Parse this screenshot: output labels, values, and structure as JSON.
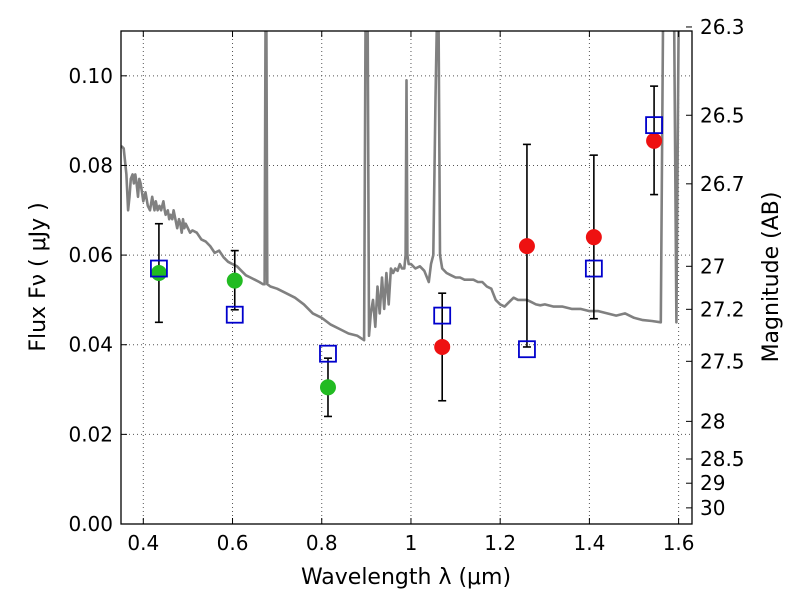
{
  "chart_data": {
    "type": "scatter",
    "xlabel": "Wavelength  λ (μm)",
    "ylabel": "Flux  Fν  ( μJy )",
    "y2label": "Magnitude (AB)",
    "xlim": [
      0.35,
      1.63
    ],
    "ylim": [
      0.0,
      0.11
    ],
    "grid": true,
    "x_ticks": [
      0.4,
      0.6,
      0.8,
      1.0,
      1.2,
      1.4,
      1.6
    ],
    "x_tick_labels": [
      "0.4",
      "0.6",
      "0.8",
      "1",
      "1.2",
      "1.4",
      "1.6"
    ],
    "y_ticks": [
      0.0,
      0.02,
      0.04,
      0.06,
      0.08,
      0.1
    ],
    "y_tick_labels": [
      "0.00",
      "0.02",
      "0.04",
      "0.06",
      "0.08",
      "0.10"
    ],
    "mag_ticks": [
      {
        "label": "26.3",
        "flux": 0.1109
      },
      {
        "label": "26.5",
        "flux": 0.0912
      },
      {
        "label": "26.7",
        "flux": 0.0759
      },
      {
        "label": "27",
        "flux": 0.0575
      },
      {
        "label": "27.2",
        "flux": 0.0479
      },
      {
        "label": "27.5",
        "flux": 0.0363
      },
      {
        "label": "28",
        "flux": 0.0229
      },
      {
        "label": "28.5",
        "flux": 0.0145
      },
      {
        "label": "29",
        "flux": 0.0091
      },
      {
        "label": "30",
        "flux": 0.0036
      }
    ],
    "series": [
      {
        "marker": "circle",
        "color": "#22bb22",
        "points": [
          {
            "x": 0.435,
            "y": 0.056,
            "lo": 0.045,
            "hi": 0.067
          },
          {
            "x": 0.605,
            "y": 0.0543,
            "lo": 0.0478,
            "hi": 0.061
          },
          {
            "x": 0.814,
            "y": 0.0305,
            "lo": 0.024,
            "hi": 0.037
          }
        ]
      },
      {
        "marker": "circle",
        "color": "#ee1111",
        "points": [
          {
            "x": 1.07,
            "y": 0.0395,
            "lo": 0.0275,
            "hi": 0.0515
          },
          {
            "x": 1.26,
            "y": 0.062,
            "lo": 0.0395,
            "hi": 0.0847
          },
          {
            "x": 1.41,
            "y": 0.064,
            "lo": 0.0458,
            "hi": 0.0823
          },
          {
            "x": 1.545,
            "y": 0.0855,
            "lo": 0.0735,
            "hi": 0.0977
          }
        ]
      },
      {
        "marker": "open-square",
        "color": "#0000cc",
        "points": [
          {
            "x": 0.435,
            "y": 0.057
          },
          {
            "x": 0.605,
            "y": 0.0467
          },
          {
            "x": 0.814,
            "y": 0.038
          },
          {
            "x": 1.07,
            "y": 0.0465
          },
          {
            "x": 1.26,
            "y": 0.039
          },
          {
            "x": 1.41,
            "y": 0.057
          },
          {
            "x": 1.545,
            "y": 0.089
          }
        ]
      },
      {
        "marker": "line",
        "color": "#808080",
        "points": [
          [
            0.35,
            0.084
          ],
          [
            0.352,
            0.0842
          ],
          [
            0.356,
            0.0838
          ],
          [
            0.359,
            0.081
          ],
          [
            0.362,
            0.078
          ],
          [
            0.366,
            0.07
          ],
          [
            0.369,
            0.073
          ],
          [
            0.372,
            0.077
          ],
          [
            0.376,
            0.078
          ],
          [
            0.379,
            0.076
          ],
          [
            0.382,
            0.078
          ],
          [
            0.385,
            0.076
          ],
          [
            0.388,
            0.073
          ],
          [
            0.391,
            0.077
          ],
          [
            0.394,
            0.076
          ],
          [
            0.397,
            0.074
          ],
          [
            0.4,
            0.072
          ],
          [
            0.405,
            0.074
          ],
          [
            0.41,
            0.071
          ],
          [
            0.415,
            0.07
          ],
          [
            0.42,
            0.073
          ],
          [
            0.425,
            0.07
          ],
          [
            0.428,
            0.072
          ],
          [
            0.432,
            0.07
          ],
          [
            0.436,
            0.071
          ],
          [
            0.44,
            0.07
          ],
          [
            0.445,
            0.072
          ],
          [
            0.448,
            0.07
          ],
          [
            0.45,
            0.069
          ],
          [
            0.455,
            0.07
          ],
          [
            0.458,
            0.068
          ],
          [
            0.461,
            0.069
          ],
          [
            0.465,
            0.068
          ],
          [
            0.468,
            0.07
          ],
          [
            0.472,
            0.068
          ],
          [
            0.476,
            0.066
          ],
          [
            0.48,
            0.068
          ],
          [
            0.483,
            0.067
          ],
          [
            0.486,
            0.065
          ],
          [
            0.489,
            0.068
          ],
          [
            0.492,
            0.066
          ],
          [
            0.495,
            0.067
          ],
          [
            0.5,
            0.066
          ],
          [
            0.505,
            0.065
          ],
          [
            0.51,
            0.0655
          ],
          [
            0.52,
            0.065
          ],
          [
            0.53,
            0.0635
          ],
          [
            0.54,
            0.063
          ],
          [
            0.55,
            0.062
          ],
          [
            0.56,
            0.0605
          ],
          [
            0.57,
            0.061
          ],
          [
            0.58,
            0.0595
          ],
          [
            0.59,
            0.0585
          ],
          [
            0.6,
            0.058
          ],
          [
            0.61,
            0.0575
          ],
          [
            0.62,
            0.0565
          ],
          [
            0.63,
            0.0555
          ],
          [
            0.64,
            0.055
          ],
          [
            0.65,
            0.0545
          ],
          [
            0.66,
            0.054
          ],
          [
            0.668,
            0.0535
          ],
          [
            0.672,
            0.0535
          ],
          [
            0.674,
            0.111
          ],
          [
            0.676,
            0.111
          ],
          [
            0.678,
            0.0535
          ],
          [
            0.685,
            0.053
          ],
          [
            0.7,
            0.0525
          ],
          [
            0.72,
            0.0515
          ],
          [
            0.74,
            0.0505
          ],
          [
            0.76,
            0.049
          ],
          [
            0.78,
            0.047
          ],
          [
            0.8,
            0.046
          ],
          [
            0.82,
            0.0445
          ],
          [
            0.84,
            0.0435
          ],
          [
            0.86,
            0.0425
          ],
          [
            0.88,
            0.042
          ],
          [
            0.895,
            0.041
          ],
          [
            0.898,
            0.111
          ],
          [
            0.903,
            0.111
          ],
          [
            0.906,
            0.042
          ],
          [
            0.91,
            0.047
          ],
          [
            0.915,
            0.05
          ],
          [
            0.92,
            0.044
          ],
          [
            0.925,
            0.053
          ],
          [
            0.93,
            0.047
          ],
          [
            0.935,
            0.055
          ],
          [
            0.94,
            0.048
          ],
          [
            0.945,
            0.056
          ],
          [
            0.95,
            0.049
          ],
          [
            0.955,
            0.057
          ],
          [
            0.96,
            0.056
          ],
          [
            0.965,
            0.057
          ],
          [
            0.97,
            0.0565
          ],
          [
            0.975,
            0.058
          ],
          [
            0.98,
            0.057
          ],
          [
            0.985,
            0.057
          ],
          [
            0.988,
            0.06
          ],
          [
            0.99,
            0.099
          ],
          [
            0.992,
            0.06
          ],
          [
            0.995,
            0.058
          ],
          [
            1.0,
            0.058
          ],
          [
            1.01,
            0.057
          ],
          [
            1.02,
            0.0575
          ],
          [
            1.03,
            0.0565
          ],
          [
            1.04,
            0.054
          ],
          [
            1.045,
            0.058
          ],
          [
            1.05,
            0.06
          ],
          [
            1.055,
            0.095
          ],
          [
            1.058,
            0.111
          ],
          [
            1.062,
            0.111
          ],
          [
            1.065,
            0.06
          ],
          [
            1.07,
            0.057
          ],
          [
            1.08,
            0.056
          ],
          [
            1.09,
            0.0555
          ],
          [
            1.1,
            0.055
          ],
          [
            1.11,
            0.055
          ],
          [
            1.12,
            0.0545
          ],
          [
            1.13,
            0.0545
          ],
          [
            1.14,
            0.0545
          ],
          [
            1.15,
            0.054
          ],
          [
            1.16,
            0.054
          ],
          [
            1.17,
            0.053
          ],
          [
            1.18,
            0.0525
          ],
          [
            1.19,
            0.05
          ],
          [
            1.2,
            0.049
          ],
          [
            1.21,
            0.0485
          ],
          [
            1.22,
            0.0495
          ],
          [
            1.23,
            0.0505
          ],
          [
            1.24,
            0.05
          ],
          [
            1.25,
            0.05
          ],
          [
            1.26,
            0.05
          ],
          [
            1.27,
            0.0495
          ],
          [
            1.28,
            0.049
          ],
          [
            1.29,
            0.0488
          ],
          [
            1.3,
            0.049
          ],
          [
            1.32,
            0.0485
          ],
          [
            1.34,
            0.0485
          ],
          [
            1.36,
            0.048
          ],
          [
            1.38,
            0.048
          ],
          [
            1.4,
            0.0475
          ],
          [
            1.42,
            0.0475
          ],
          [
            1.44,
            0.047
          ],
          [
            1.46,
            0.0465
          ],
          [
            1.48,
            0.047
          ],
          [
            1.5,
            0.046
          ],
          [
            1.52,
            0.0455
          ],
          [
            1.54,
            0.0453
          ],
          [
            1.56,
            0.045
          ],
          [
            1.565,
            0.111
          ],
          [
            1.58,
            0.111
          ],
          [
            1.59,
            0.111
          ],
          [
            1.595,
            0.045
          ],
          [
            1.6,
            0.111
          ],
          [
            1.61,
            0.111
          ]
        ]
      }
    ]
  }
}
